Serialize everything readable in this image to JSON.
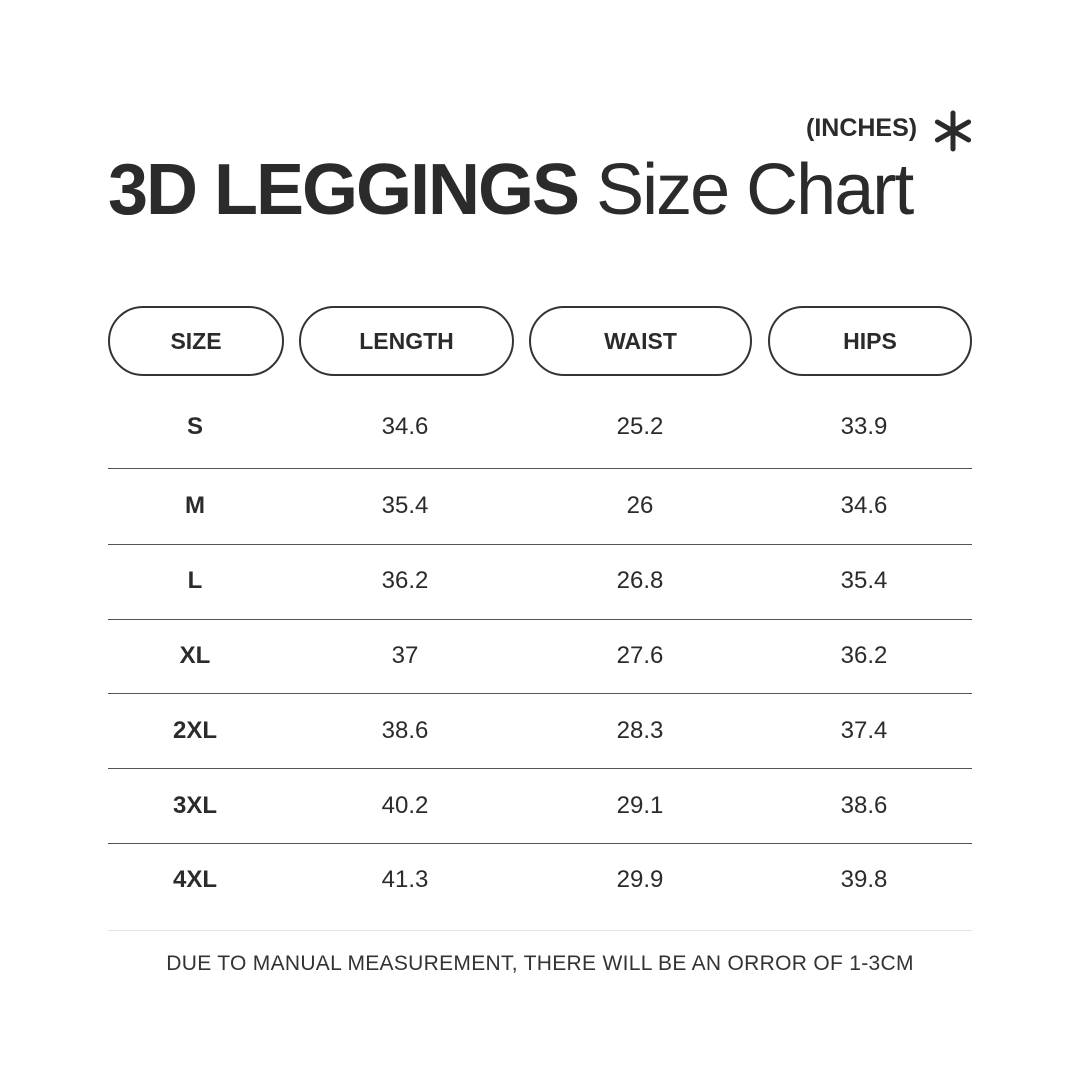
{
  "title": {
    "bold": "3D LEGGINGS",
    "regular": "Size Chart"
  },
  "units": "(INCHES)",
  "units_icon": "asterisk-icon",
  "columns": [
    "SIZE",
    "LENGTH",
    "WAIST",
    "HIPS"
  ],
  "rows": [
    [
      "S",
      "34.6",
      "25.2",
      "33.9"
    ],
    [
      "M",
      "35.4",
      "26",
      "34.6"
    ],
    [
      "L",
      "36.2",
      "26.8",
      "35.4"
    ],
    [
      "XL",
      "37",
      "27.6",
      "36.2"
    ],
    [
      "2XL",
      "38.6",
      "28.3",
      "37.4"
    ],
    [
      "3XL",
      "40.2",
      "29.1",
      "38.6"
    ],
    [
      "4XL",
      "41.3",
      "29.9",
      "39.8"
    ]
  ],
  "footer": "DUE TO MANUAL MEASUREMENT, THERE WILL BE AN ORROR OF 1-3CM"
}
